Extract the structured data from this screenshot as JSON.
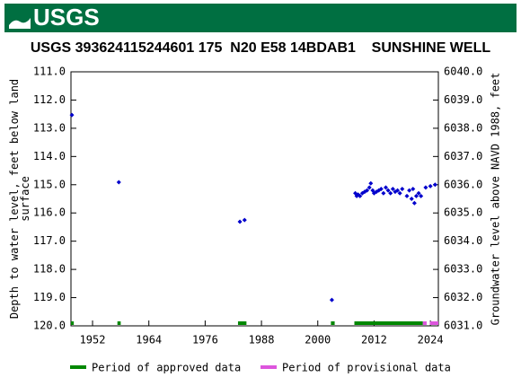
{
  "header": {
    "logo": "USGS"
  },
  "chart_data": {
    "type": "scatter",
    "title": "USGS 393624115244601 175  N20 E58 14BDAB1    SUNSHINE WELL",
    "ylabel": [
      "Depth to water level, feet below land",
      "surface"
    ],
    "y2label": "Groundwater level above NAVD 1988, feet",
    "x": [
      1947.6,
      1957.6,
      1983.4,
      1984.4,
      2003.0,
      2008.0,
      2008.3,
      2008.6,
      2009.0,
      2009.5,
      2010.0,
      2010.5,
      2011.0,
      2011.3,
      2011.7,
      2012.0,
      2012.5,
      2013.0,
      2013.5,
      2014.0,
      2014.5,
      2015.0,
      2015.5,
      2016.0,
      2016.5,
      2017.0,
      2017.5,
      2018.0,
      2019.0,
      2019.5,
      2020.0,
      2020.3,
      2020.6,
      2021.0,
      2021.5,
      2022.0,
      2023.0,
      2024.0,
      2025.0
    ],
    "values": [
      112.53,
      114.91,
      116.31,
      116.25,
      119.08,
      115.3,
      115.4,
      115.35,
      115.4,
      115.3,
      115.25,
      115.2,
      115.1,
      114.95,
      115.2,
      115.3,
      115.25,
      115.2,
      115.15,
      115.3,
      115.1,
      115.2,
      115.3,
      115.15,
      115.25,
      115.2,
      115.3,
      115.15,
      115.4,
      115.2,
      115.5,
      115.15,
      115.65,
      115.4,
      115.3,
      115.4,
      115.1,
      115.05,
      115.0
    ],
    "color": "#0000cc",
    "xlim": [
      1947.4,
      2025.7
    ],
    "xticks": [
      1952,
      1964,
      1976,
      1988,
      2000,
      2012,
      2024
    ],
    "ylim": [
      111,
      120
    ],
    "inverted": true,
    "yticks": [
      {
        "value": 111,
        "label": "111.0"
      },
      {
        "value": 112,
        "label": "112.0"
      },
      {
        "value": 113,
        "label": "113.0"
      },
      {
        "value": 114,
        "label": "114.0"
      },
      {
        "value": 115,
        "label": "115.0"
      },
      {
        "value": 116,
        "label": "116.0"
      },
      {
        "value": 117,
        "label": "117.0"
      },
      {
        "value": 118,
        "label": "118.0"
      },
      {
        "value": 119,
        "label": "119.0"
      },
      {
        "value": 120,
        "label": "120.0"
      }
    ],
    "y2lim": [
      6031,
      6040
    ],
    "y2ticks": [
      {
        "value": 6040,
        "label": "6040.0"
      },
      {
        "value": 6039,
        "label": "6039.0"
      },
      {
        "value": 6038,
        "label": "6038.0"
      },
      {
        "value": 6037,
        "label": "6037.0"
      },
      {
        "value": 6036,
        "label": "6036.0"
      },
      {
        "value": 6035,
        "label": "6035.0"
      },
      {
        "value": 6034,
        "label": "6034.0"
      },
      {
        "value": 6033,
        "label": "6033.0"
      },
      {
        "value": 6032,
        "label": "6032.0"
      },
      {
        "value": 6031,
        "label": "6031.0"
      }
    ],
    "periods": [
      {
        "name": "Period of approved data",
        "color": "#008800",
        "ranges": [
          [
            1947.4,
            1948.0
          ],
          [
            1957.3,
            1958.0
          ],
          [
            1983.0,
            1984.8
          ],
          [
            2002.8,
            2003.6
          ],
          [
            2007.8,
            2022.4
          ]
        ]
      },
      {
        "name": "Period of provisional data",
        "color": "#dd55dd",
        "ranges": [
          [
            2022.4,
            2023.2
          ],
          [
            2023.9,
            2025.7
          ]
        ]
      }
    ]
  }
}
